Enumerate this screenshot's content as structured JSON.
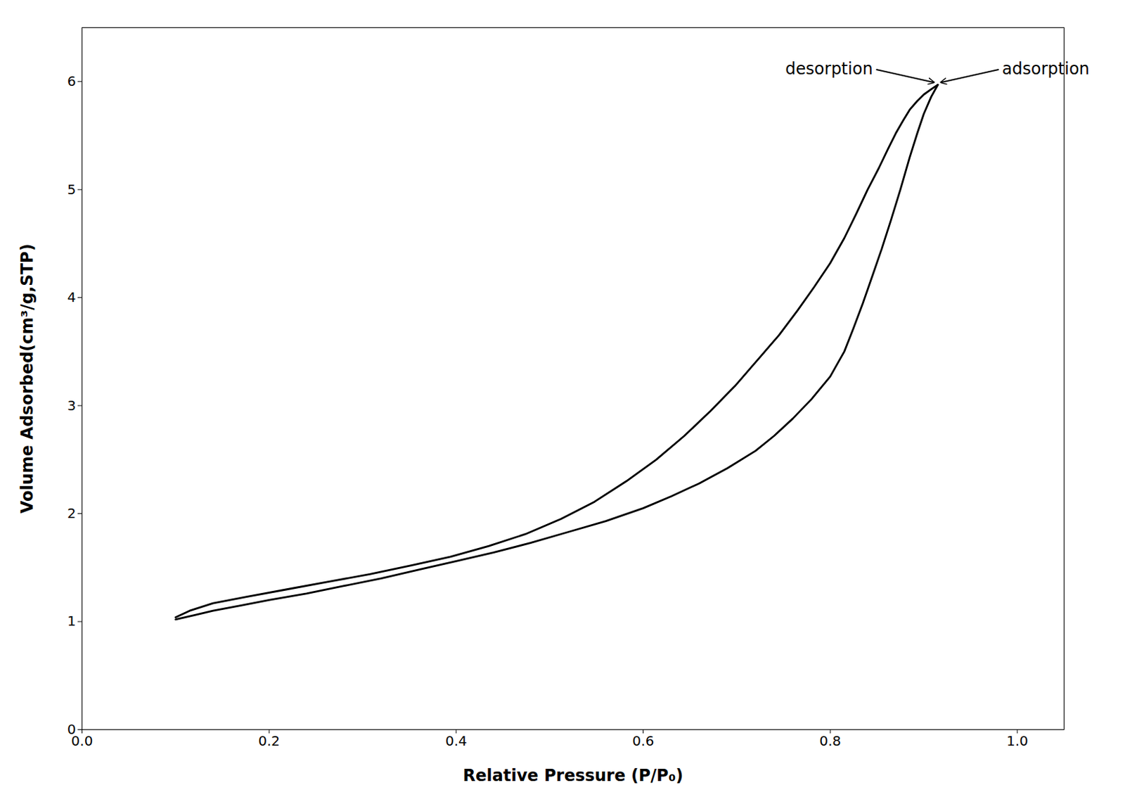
{
  "chart_data": {
    "type": "line",
    "xlabel": "Relative Pressure (P/P₀)",
    "ylabel": "Volume Adsorbed(cm³/g,STP)",
    "series": [
      {
        "name": "adsorption",
        "color": "#000000",
        "x": [
          0.1,
          0.12,
          0.14,
          0.17,
          0.2,
          0.24,
          0.28,
          0.32,
          0.36,
          0.4,
          0.44,
          0.48,
          0.52,
          0.56,
          0.6,
          0.63,
          0.66,
          0.69,
          0.72,
          0.74,
          0.76,
          0.78,
          0.8,
          0.815,
          0.825,
          0.835,
          0.845,
          0.855,
          0.865,
          0.875,
          0.885,
          0.893,
          0.9,
          0.908,
          0.915
        ],
        "values": [
          1.02,
          1.06,
          1.1,
          1.15,
          1.2,
          1.26,
          1.33,
          1.4,
          1.48,
          1.56,
          1.64,
          1.73,
          1.83,
          1.93,
          2.05,
          2.16,
          2.28,
          2.42,
          2.58,
          2.72,
          2.88,
          3.06,
          3.27,
          3.5,
          3.72,
          3.95,
          4.2,
          4.45,
          4.72,
          5.0,
          5.3,
          5.52,
          5.7,
          5.86,
          5.97
        ]
      },
      {
        "name": "desorption",
        "color": "#000000",
        "x": [
          0.915,
          0.908,
          0.9,
          0.893,
          0.885,
          0.878,
          0.87,
          0.862,
          0.852,
          0.84,
          0.828,
          0.815,
          0.8,
          0.783,
          0.765,
          0.745,
          0.722,
          0.698,
          0.672,
          0.644,
          0.614,
          0.582,
          0.548,
          0.512,
          0.474,
          0.435,
          0.394,
          0.352,
          0.308,
          0.264,
          0.22,
          0.176,
          0.14,
          0.115,
          0.1
        ],
        "values": [
          5.97,
          5.93,
          5.88,
          5.82,
          5.74,
          5.64,
          5.52,
          5.38,
          5.2,
          5.0,
          4.78,
          4.55,
          4.32,
          4.1,
          3.88,
          3.65,
          3.42,
          3.18,
          2.95,
          2.72,
          2.5,
          2.3,
          2.11,
          1.95,
          1.81,
          1.7,
          1.6,
          1.52,
          1.44,
          1.37,
          1.3,
          1.23,
          1.17,
          1.1,
          1.04
        ]
      }
    ],
    "xlim": [
      0.0,
      1.05
    ],
    "ylim": [
      0.0,
      6.5
    ],
    "xticks": [
      {
        "value": 0,
        "label": "0.0"
      },
      0.2,
      0.4,
      0.6,
      0.8,
      {
        "value": 1,
        "label": "1.0"
      }
    ],
    "yticks": [
      0,
      1,
      2,
      3,
      4,
      5,
      6
    ],
    "annotations": [
      "desorption",
      "adsorption"
    ],
    "grid": false
  }
}
